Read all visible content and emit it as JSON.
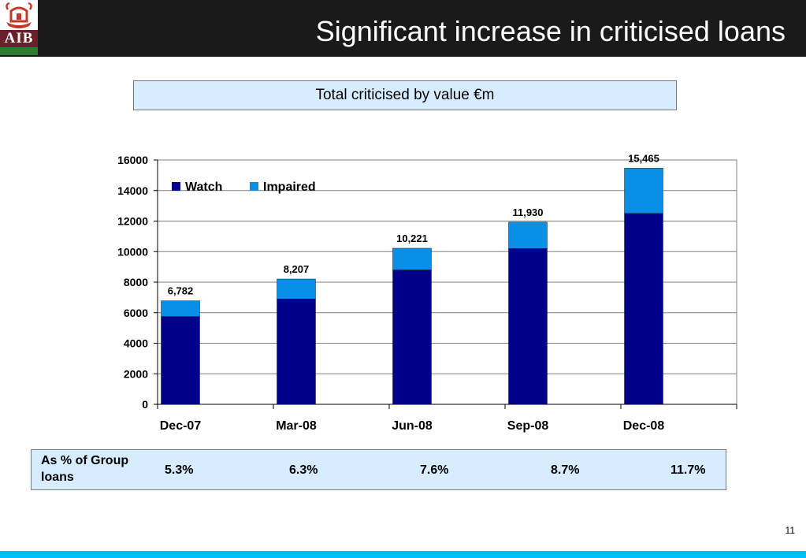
{
  "header": {
    "title": "Significant increase in criticised loans",
    "logo_text": "AIB",
    "background_color": "#1a1a1a"
  },
  "subtitle": "Total criticised by value €m",
  "chart_data": {
    "type": "bar",
    "stacked": true,
    "categories": [
      "Dec-07",
      "Mar-08",
      "Jun-08",
      "Sep-08",
      "Dec-08"
    ],
    "series": [
      {
        "name": "Watch",
        "color": "#00008b",
        "values": [
          5750,
          6900,
          8800,
          10200,
          12500
        ]
      },
      {
        "name": "Impaired",
        "color": "#0a8fe6",
        "values": [
          1032,
          1307,
          1421,
          1730,
          2965
        ]
      }
    ],
    "totals_labels": [
      "6,782",
      "8,207",
      "10,221",
      "11,930",
      "15,465"
    ],
    "ylim": [
      0,
      16000
    ],
    "yticks": [
      "0",
      "2000",
      "4000",
      "6000",
      "8000",
      "10000",
      "12000",
      "14000",
      "16000"
    ],
    "grid": true,
    "legend": "top-left"
  },
  "group_loans": {
    "label": "As % of Group loans",
    "values": [
      "5.3%",
      "6.3%",
      "7.6%",
      "8.7%",
      "11.7%"
    ]
  },
  "page_number": "11",
  "accent_color": "#00bfff"
}
